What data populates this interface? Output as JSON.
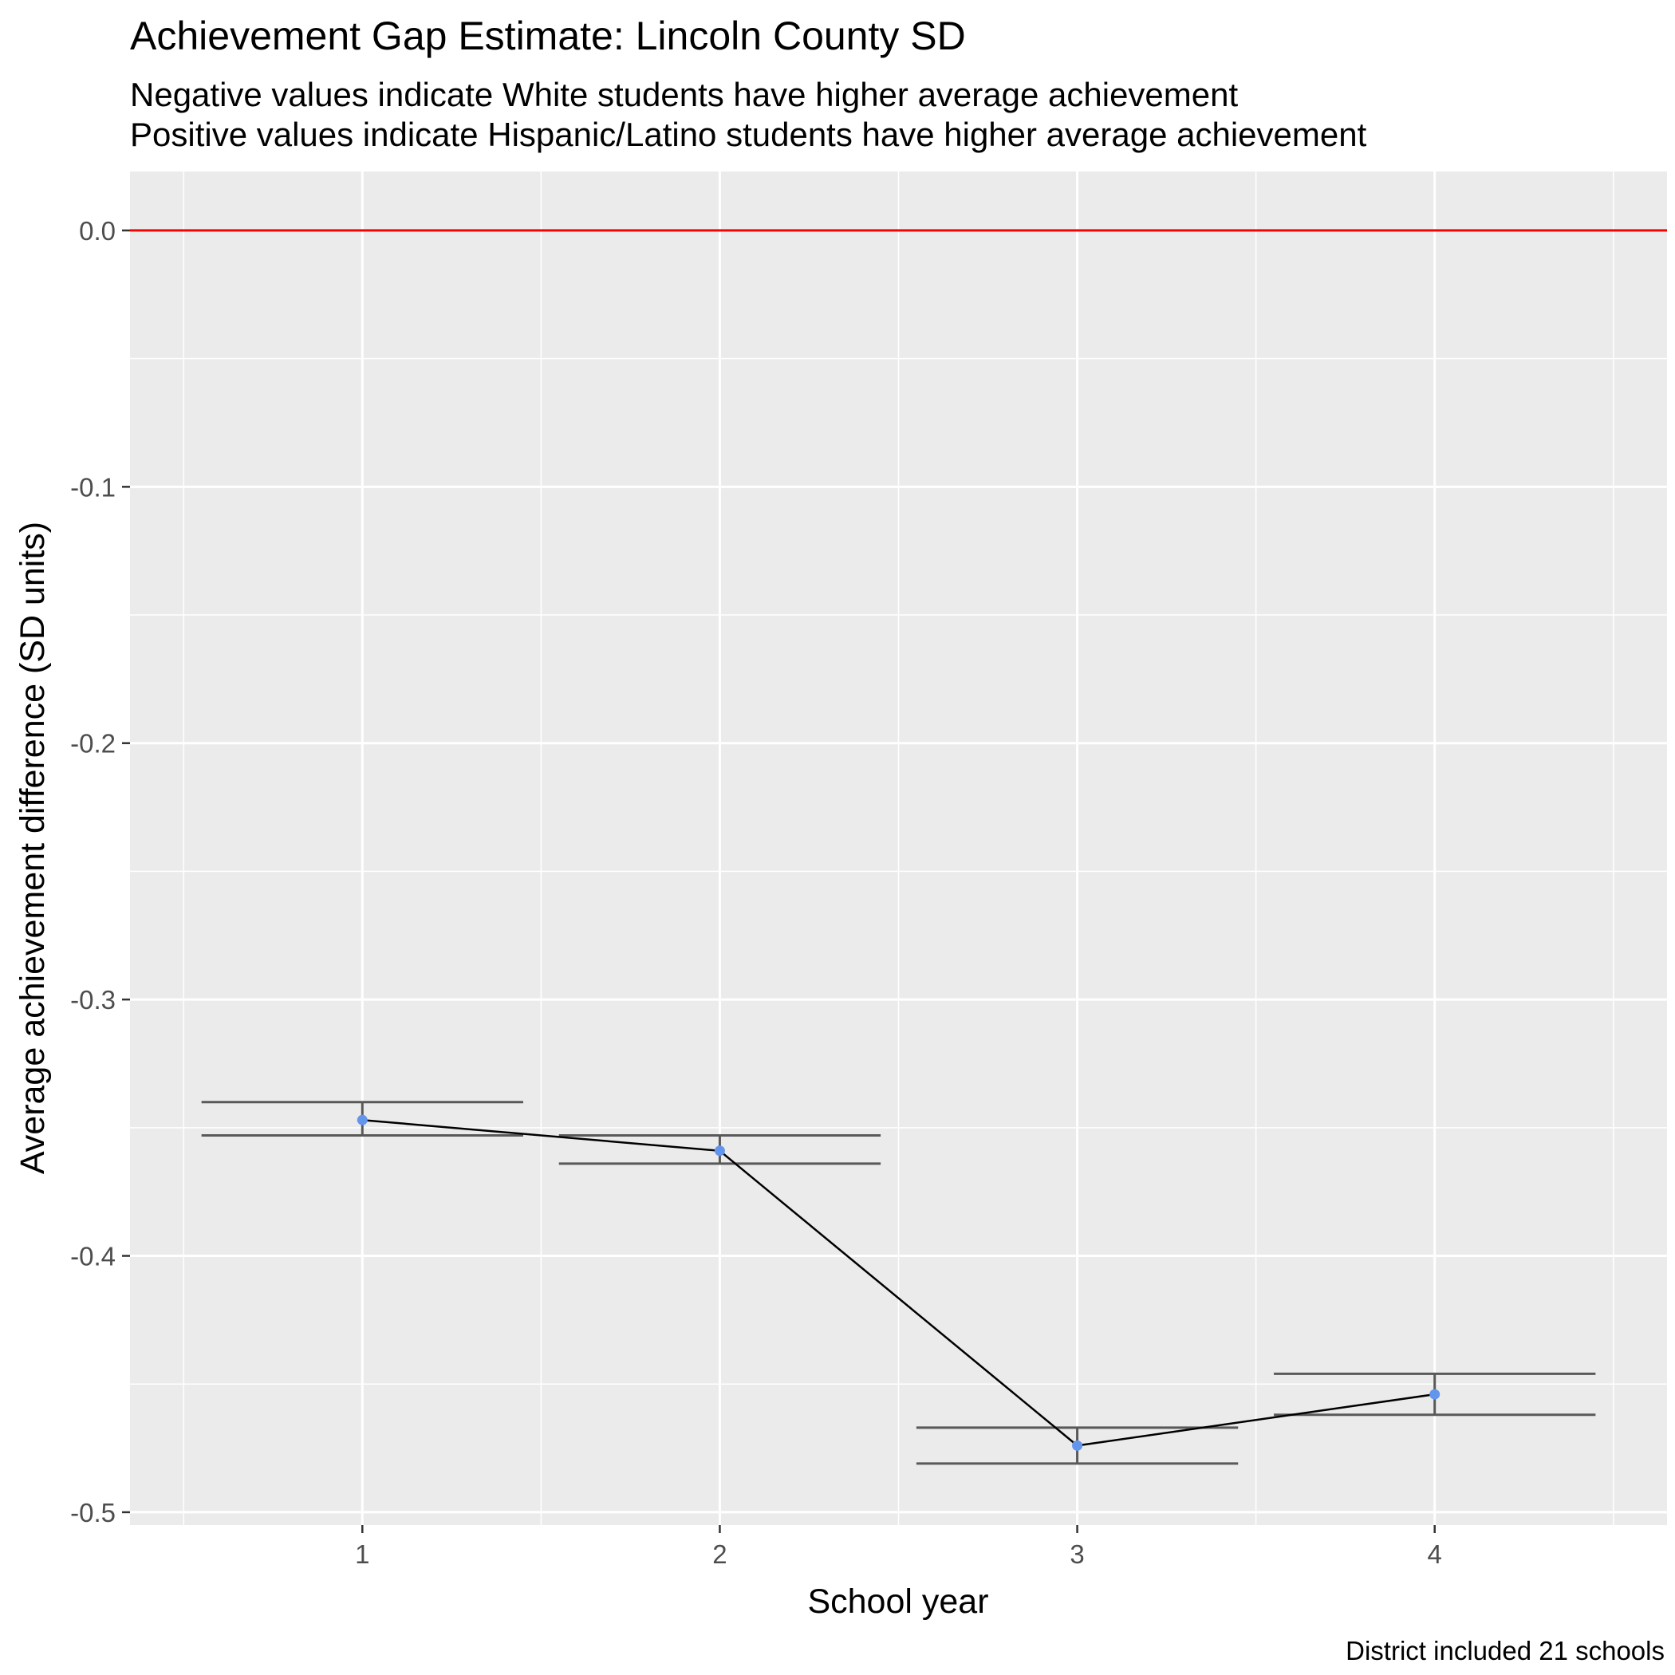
{
  "chart_data": {
    "type": "line",
    "title": "Achievement Gap Estimate: Lincoln County SD",
    "subtitle_lines": [
      "Negative values indicate White students have higher average achievement",
      "Positive values indicate Hispanic/Latino students have higher average achievement"
    ],
    "xlabel": "School year",
    "ylabel": "Average achievement difference (SD units)",
    "caption": "District included 21 schools",
    "x": [
      1,
      2,
      3,
      4
    ],
    "y": [
      -0.347,
      -0.359,
      -0.474,
      -0.454
    ],
    "error_bars": [
      {
        "x": 1,
        "upper": -0.34,
        "lower": -0.353
      },
      {
        "x": 2,
        "upper": -0.353,
        "lower": -0.364
      },
      {
        "x": 3,
        "upper": -0.467,
        "lower": -0.481
      },
      {
        "x": 4,
        "upper": -0.446,
        "lower": -0.462
      }
    ],
    "x_ticks": [
      1,
      2,
      3,
      4
    ],
    "x_tick_labels": [
      "1",
      "2",
      "3",
      "4"
    ],
    "y_ticks": [
      0.0,
      -0.1,
      -0.2,
      -0.3,
      -0.4,
      -0.5
    ],
    "y_tick_labels": [
      "0.0",
      "-0.1",
      "-0.2",
      "-0.3",
      "-0.4",
      "-0.5"
    ],
    "xlim": [
      0.35,
      4.65
    ],
    "ylim": [
      -0.505,
      0.023
    ],
    "reference_line": {
      "y": 0.0,
      "color": "#ff0000"
    },
    "point_color": "#6495ed",
    "line_color": "#000000",
    "errorbar_color": "#595959",
    "panel_background": "#ebebeb",
    "grid": true,
    "legend": "none"
  }
}
